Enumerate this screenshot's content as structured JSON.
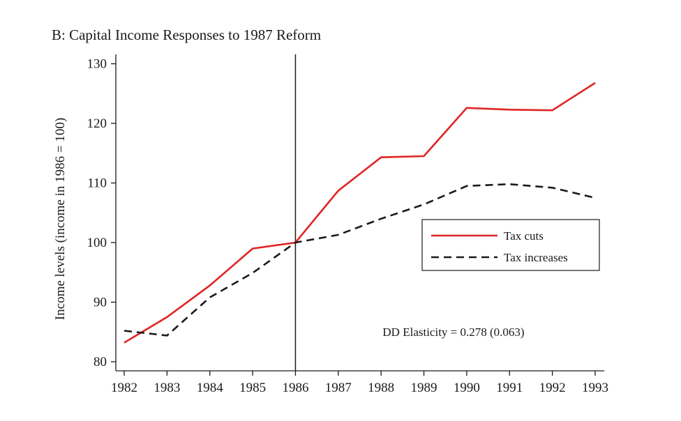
{
  "chart_data": {
    "type": "line",
    "title": "B: Capital Income Responses to 1987 Reform",
    "xlabel": "",
    "ylabel": "Income levels (income in 1986 = 100)",
    "x": [
      1982,
      1983,
      1984,
      1985,
      1986,
      1987,
      1988,
      1989,
      1990,
      1991,
      1992,
      1993
    ],
    "x_tick_labels": [
      "1982",
      "1983",
      "1984",
      "1985",
      "1986",
      "1987",
      "1988",
      "1989",
      "1990",
      "1991",
      "1992",
      "1993"
    ],
    "xlim": [
      1981.8,
      1993.2
    ],
    "ylim": [
      78.5,
      131
    ],
    "y_ticks": [
      80,
      90,
      100,
      110,
      120,
      130
    ],
    "y_tick_labels": [
      "80",
      "90",
      "100",
      "110",
      "120",
      "130"
    ],
    "grid": false,
    "vertical_line_x": 1986,
    "legend_position": "right",
    "series": [
      {
        "name": "Tax cuts",
        "color": "#e02424",
        "dash": "solid",
        "values": [
          83.2,
          87.5,
          92.8,
          99.0,
          100.0,
          108.7,
          114.3,
          114.5,
          122.6,
          122.3,
          122.2,
          126.8
        ]
      },
      {
        "name": "Tax increases",
        "color": "#1a1a1a",
        "dash": "dashed",
        "values": [
          85.2,
          84.4,
          90.8,
          94.9,
          100.0,
          101.3,
          104.0,
          106.4,
          109.5,
          109.8,
          109.2,
          107.5
        ]
      }
    ],
    "annotation": "DD Elasticity = 0.278 (0.063)"
  }
}
